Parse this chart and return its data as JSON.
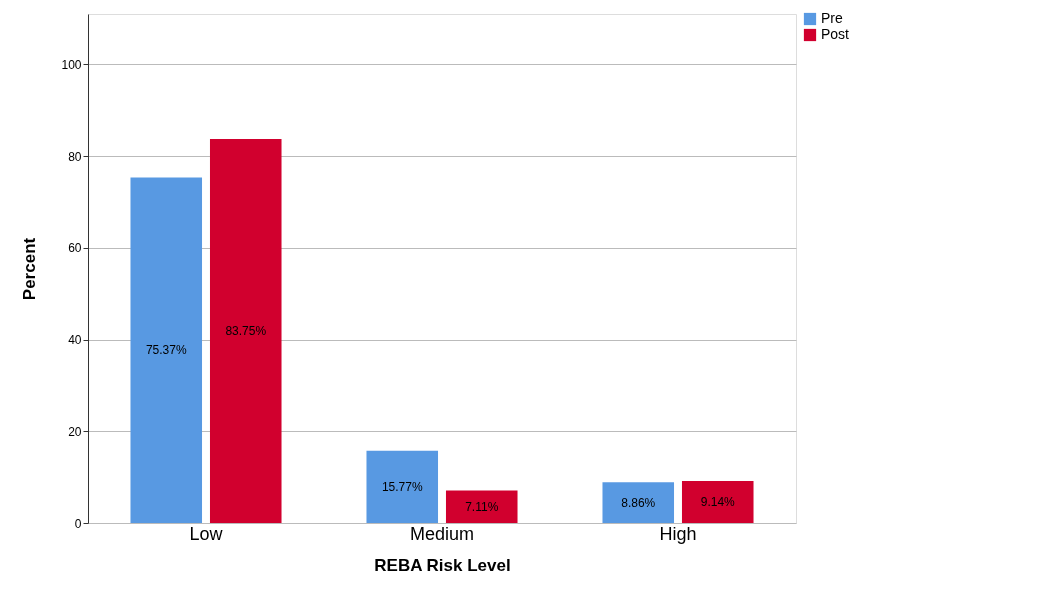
{
  "chart_data": {
    "type": "bar",
    "xlabel": "REBA Risk Level",
    "ylabel": "Percent",
    "categories": [
      "Low",
      "Medium",
      "High"
    ],
    "series": [
      {
        "name": "Pre",
        "color": "#5899e2",
        "values": [
          75.37,
          15.77,
          8.86
        ],
        "value_labels": [
          "75.37%",
          "15.77%",
          "8.86%"
        ]
      },
      {
        "name": "Post",
        "color": "#d1002e",
        "values": [
          83.75,
          7.11,
          9.14
        ],
        "value_labels": [
          "83.75%",
          "7.11%",
          "9.14%"
        ]
      }
    ],
    "ylim": [
      0,
      111
    ],
    "yticks": [
      0,
      20,
      40,
      60,
      80,
      100
    ],
    "grid": "y",
    "legend": "top right"
  }
}
